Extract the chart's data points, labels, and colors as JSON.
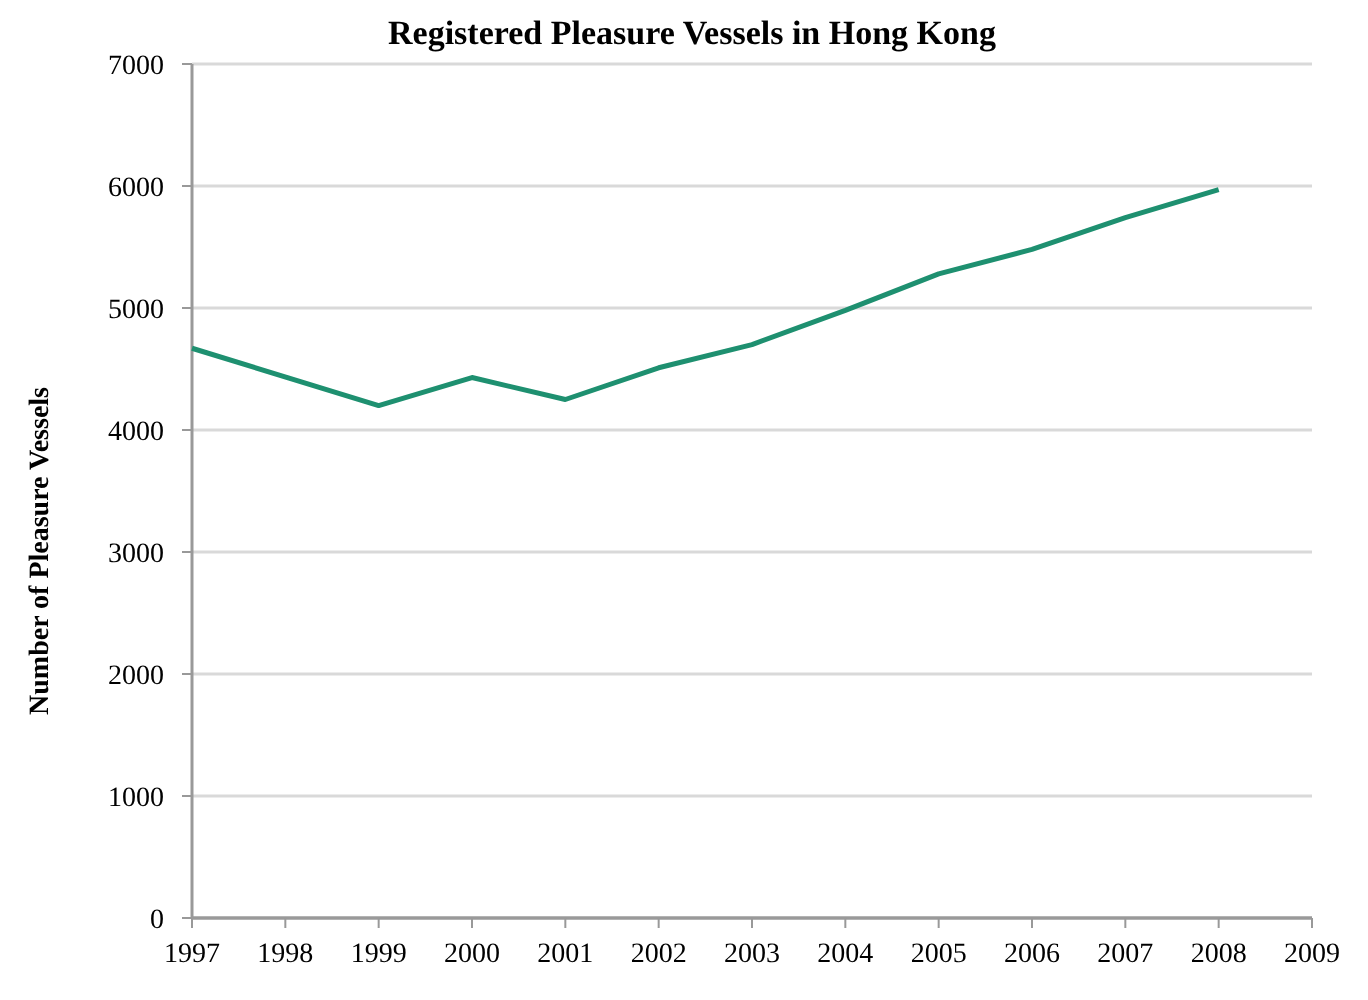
{
  "chart_data": {
    "type": "line",
    "title": "Registered Pleasure Vessels in Hong Kong",
    "ylabel": "Number of Pleasure Vessels",
    "x": [
      1997,
      1999,
      2000,
      2001,
      2002,
      2003,
      2004,
      2005,
      2006,
      2007,
      2008
    ],
    "series": [
      {
        "color": "#1e9070",
        "values": [
          4670,
          4200,
          4430,
          4250,
          4510,
          4700,
          4980,
          5280,
          5480,
          5740,
          5970
        ]
      }
    ],
    "xlim": [
      1997,
      2009
    ],
    "xticks": [
      1997,
      1998,
      1999,
      2000,
      2001,
      2002,
      2003,
      2004,
      2005,
      2006,
      2007,
      2008,
      2009
    ],
    "ylim": [
      0,
      7000
    ],
    "yticks": [
      0,
      1000,
      2000,
      3000,
      4000,
      5000,
      6000,
      7000
    ],
    "grid": "y"
  }
}
